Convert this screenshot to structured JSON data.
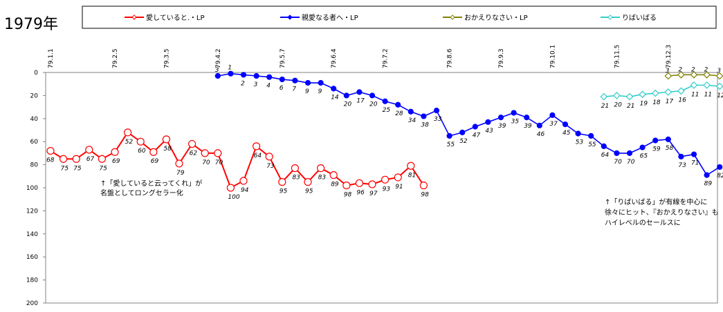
{
  "chart_data": {
    "type": "line",
    "title": "1979年",
    "ylim": [
      200,
      0
    ],
    "yticks": [
      0,
      20,
      40,
      60,
      80,
      100,
      120,
      140,
      160,
      180,
      200
    ],
    "date_ticks": [
      "79.1.1",
      "79.2.5",
      "79.3.5",
      "79.4.2",
      "79.5.7",
      "79.6.4",
      "79.7.2",
      "79.8.6",
      "79.9.3",
      "79.10.1",
      "79.11.5",
      "79.12.3"
    ],
    "legend_placement": "top",
    "series": [
      {
        "name": "愛していると.・LP",
        "color": "#ff0000",
        "marker": "diamond",
        "start": 0,
        "values": [
          68,
          75,
          75,
          67,
          75,
          69,
          52,
          60,
          69,
          58,
          79,
          62,
          70,
          70,
          100,
          94,
          64,
          73,
          95,
          83,
          95,
          83,
          89,
          98,
          96,
          97,
          93,
          91,
          81,
          98
        ]
      },
      {
        "name": "親愛なる者へ・LP",
        "color": "#0000ff",
        "marker": "diamond",
        "start": 13,
        "values": [
          3,
          1,
          2,
          3,
          4,
          6,
          7,
          9,
          9,
          14,
          20,
          17,
          20,
          25,
          28,
          34,
          38,
          33,
          55,
          52,
          47,
          43,
          39,
          35,
          39,
          46,
          37,
          45,
          53,
          55,
          64,
          70,
          70,
          65,
          59,
          58,
          73,
          71,
          89,
          82
        ]
      },
      {
        "name": "おかえりなさい・LP",
        "color": "#808000",
        "marker": "diamond",
        "start": 48,
        "values": [
          3,
          2,
          2,
          2,
          3
        ]
      },
      {
        "name": "りばいばる",
        "color": "#33cccc",
        "marker": "diamond",
        "start": 43,
        "values": [
          21,
          20,
          21,
          19,
          18,
          17,
          16,
          11,
          11,
          12
        ]
      }
    ],
    "annotations": [
      "↑「愛していると云ってくれ」が",
      "名盤としてロングセラー化",
      "↑「りばいばる」が有線を中心に",
      "徐々にヒット、『おかえりなさい』も",
      "ハイレベルのセールスに"
    ]
  }
}
